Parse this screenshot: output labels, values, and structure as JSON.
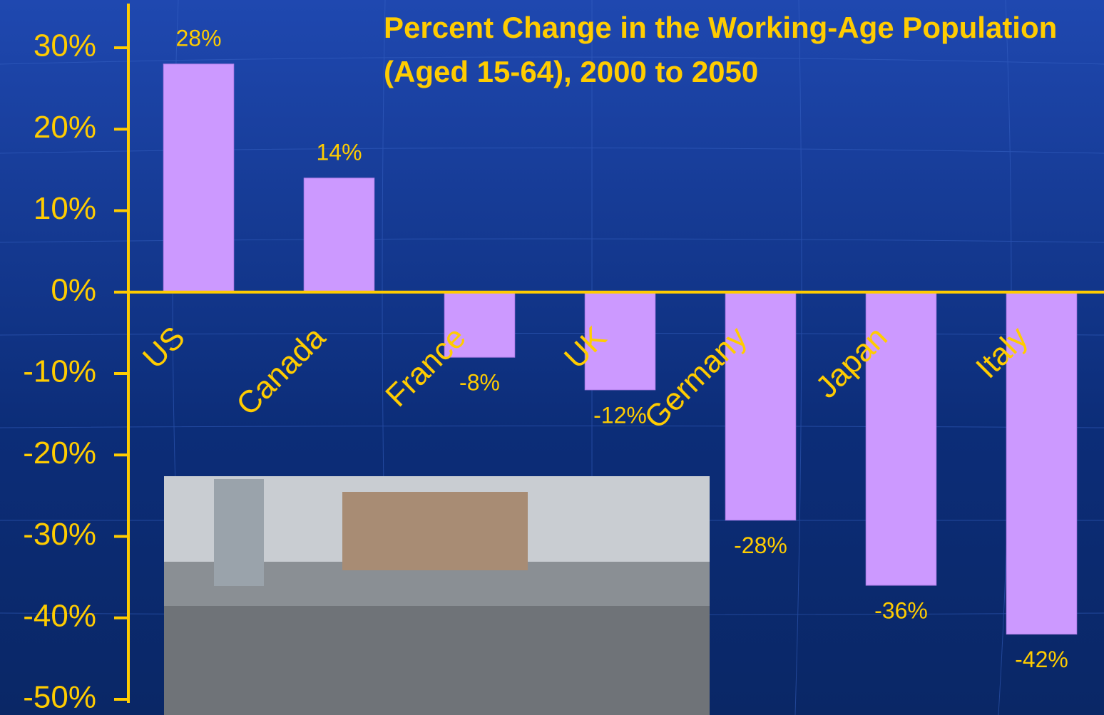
{
  "chart_data": {
    "type": "bar",
    "title": "Percent Change in the Working-Age Population (Aged 15-64), 2000 to 2050",
    "categories": [
      "US",
      "Canada",
      "France",
      "UK",
      "Germany",
      "Japan",
      "Italy"
    ],
    "values": [
      28,
      14,
      -8,
      -12,
      -28,
      -36,
      -42
    ],
    "value_labels": [
      "28%",
      "14%",
      "-8%",
      "-12%",
      "-28%",
      "-36%",
      "-42%"
    ],
    "color": "#cc99ff",
    "ylim": [
      -50,
      30
    ],
    "yticks": [
      {
        "value": -50,
        "label": "-50%"
      },
      {
        "value": -40,
        "label": "-40%"
      },
      {
        "value": -30,
        "label": "-30%"
      },
      {
        "value": -20,
        "label": "-20%"
      },
      {
        "value": -10,
        "label": "-10%"
      },
      {
        "value": 0,
        "label": "0%"
      },
      {
        "value": 10,
        "label": "10%"
      },
      {
        "value": 20,
        "label": "20%"
      },
      {
        "value": 30,
        "label": "30%"
      }
    ],
    "grid": false
  }
}
